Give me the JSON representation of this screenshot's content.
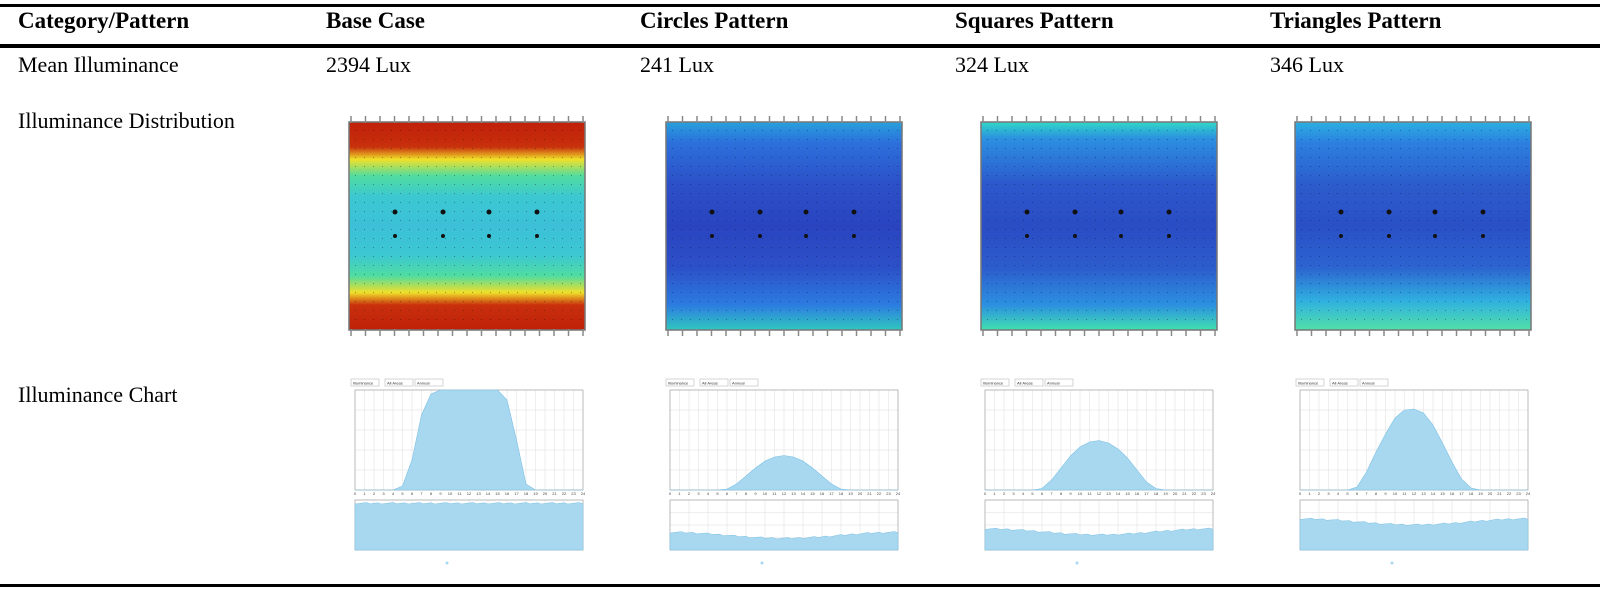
{
  "headers": [
    "Category/Pattern",
    "Base Case",
    "Circles Pattern",
    "Squares Pattern",
    "Triangles Pattern"
  ],
  "rows": {
    "mean_label": "Mean Illuminance",
    "dist_label": "Illuminance Distribution",
    "chart_label": "Illuminance Chart"
  },
  "cases": [
    {
      "mean": "2394 Lux",
      "map_style": "high"
    },
    {
      "mean": "241 Lux",
      "map_style": "low"
    },
    {
      "mean": "324 Lux",
      "map_style": "medlow"
    },
    {
      "mean": "346 Lux",
      "map_style": "med"
    }
  ],
  "colors": {
    "fill": "#a8d8f0",
    "stroke": "#7cc0e4",
    "grid": "#dddddd"
  },
  "chart_data": [
    {
      "type": "area",
      "x": [
        0,
        1,
        2,
        3,
        4,
        5,
        6,
        7,
        8,
        9,
        10,
        11,
        12,
        13,
        14,
        15,
        16,
        17,
        18,
        19,
        20,
        21,
        22,
        23,
        24
      ],
      "values": [
        0,
        0,
        0,
        0,
        0,
        40,
        300,
        750,
        960,
        1000,
        1000,
        1000,
        1000,
        1000,
        1000,
        1000,
        900,
        500,
        60,
        0,
        0,
        0,
        0,
        0,
        0
      ],
      "ylim": [
        0,
        1000
      ],
      "yearly_level": 0.92
    },
    {
      "type": "area",
      "x": [
        0,
        1,
        2,
        3,
        4,
        5,
        6,
        7,
        8,
        9,
        10,
        11,
        12,
        13,
        14,
        15,
        16,
        17,
        18,
        19,
        20,
        21,
        22,
        23,
        24
      ],
      "values": [
        0,
        0,
        0,
        0,
        0,
        0,
        10,
        60,
        140,
        220,
        290,
        330,
        345,
        330,
        290,
        220,
        140,
        60,
        10,
        0,
        0,
        0,
        0,
        0,
        0
      ],
      "ylim": [
        0,
        1000
      ],
      "yearly_level": 0.28
    },
    {
      "type": "area",
      "x": [
        0,
        1,
        2,
        3,
        4,
        5,
        6,
        7,
        8,
        9,
        10,
        11,
        12,
        13,
        14,
        15,
        16,
        17,
        18,
        19,
        20,
        21,
        22,
        23,
        24
      ],
      "values": [
        0,
        0,
        0,
        0,
        0,
        0,
        15,
        100,
        220,
        340,
        430,
        480,
        495,
        470,
        410,
        320,
        200,
        80,
        15,
        0,
        0,
        0,
        0,
        0,
        0
      ],
      "ylim": [
        0,
        1000
      ],
      "yearly_level": 0.35
    },
    {
      "type": "area",
      "x": [
        0,
        1,
        2,
        3,
        4,
        5,
        6,
        7,
        8,
        9,
        10,
        11,
        12,
        13,
        14,
        15,
        16,
        17,
        18,
        19,
        20,
        21,
        22,
        23,
        24
      ],
      "values": [
        0,
        0,
        0,
        0,
        0,
        0,
        30,
        180,
        380,
        560,
        720,
        800,
        810,
        770,
        650,
        470,
        280,
        110,
        20,
        0,
        0,
        0,
        0,
        0,
        0
      ],
      "ylim": [
        0,
        1000
      ],
      "yearly_level": 0.55
    }
  ]
}
